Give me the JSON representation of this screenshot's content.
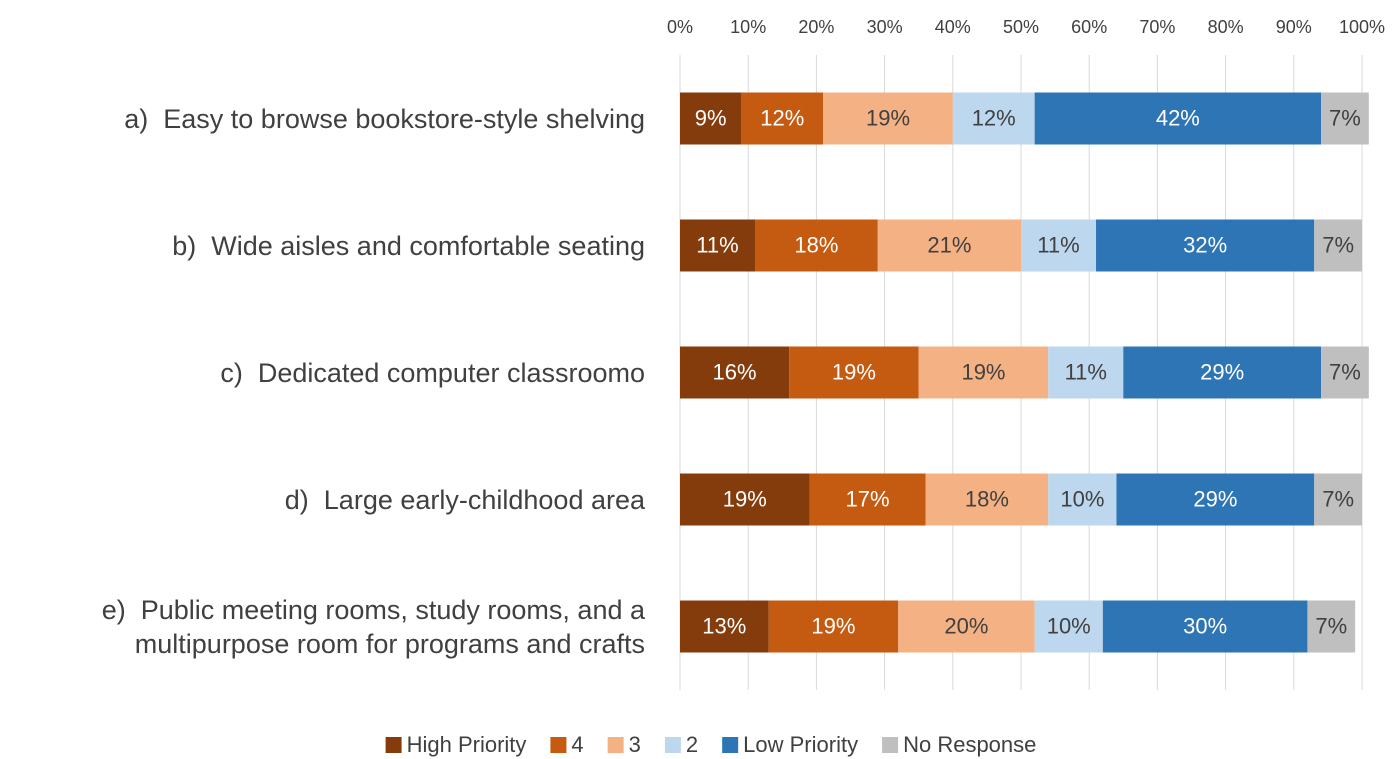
{
  "chart_data": {
    "type": "stacked_bar_horizontal",
    "categories": [
      "a)  Easy to browse bookstore-style shelving",
      "b)  Wide aisles and comfortable seating",
      "c)  Dedicated computer classroomo",
      "d)  Large early-childhood area",
      "e)  Public meeting rooms, study rooms, and a\nmultipurpose room for programs and crafts"
    ],
    "series": [
      {
        "name": "High Priority",
        "color": "#843c0c",
        "label_color": "#ffffff",
        "values": [
          9,
          11,
          16,
          19,
          13
        ],
        "value_labels": [
          "9%",
          "11%",
          "16%",
          "19%",
          "13%"
        ]
      },
      {
        "name": "4",
        "color": "#c55a11",
        "label_color": "#ffffff",
        "values": [
          12,
          18,
          19,
          17,
          19
        ],
        "value_labels": [
          "12%",
          "18%",
          "19%",
          "17%",
          "19%"
        ]
      },
      {
        "name": "3",
        "color": "#f4b183",
        "label_color": "#404040",
        "values": [
          19,
          21,
          19,
          18,
          20
        ],
        "value_labels": [
          "19%",
          "21%",
          "19%",
          "18%",
          "20%"
        ]
      },
      {
        "name": "2",
        "color": "#bdd7ee",
        "label_color": "#404040",
        "values": [
          12,
          11,
          11,
          10,
          10
        ],
        "value_labels": [
          "12%",
          "11%",
          "11%",
          "10%",
          "10%"
        ]
      },
      {
        "name": "Low Priority",
        "color": "#2e75b6",
        "label_color": "#ffffff",
        "values": [
          42,
          32,
          29,
          29,
          30
        ],
        "value_labels": [
          "42%",
          "32%",
          "29%",
          "29%",
          "30%"
        ]
      },
      {
        "name": "No Response",
        "color": "#bfbfbf",
        "label_color": "#404040",
        "values": [
          7,
          7,
          7,
          7,
          7
        ],
        "value_labels": [
          "7%",
          "7%",
          "7%",
          "7%",
          "7%"
        ]
      }
    ],
    "xlim": [
      0,
      100
    ],
    "xticks": [
      {
        "value": 0,
        "label": "0%"
      },
      {
        "value": 10,
        "label": "10%"
      },
      {
        "value": 20,
        "label": "20%"
      },
      {
        "value": 30,
        "label": "30%"
      },
      {
        "value": 40,
        "label": "40%"
      },
      {
        "value": 50,
        "label": "50%"
      },
      {
        "value": 60,
        "label": "60%"
      },
      {
        "value": 70,
        "label": "70%"
      },
      {
        "value": 80,
        "label": "80%"
      },
      {
        "value": 90,
        "label": "90%"
      },
      {
        "value": 100,
        "label": "100%"
      }
    ],
    "grid": true,
    "legend": "bottom"
  }
}
